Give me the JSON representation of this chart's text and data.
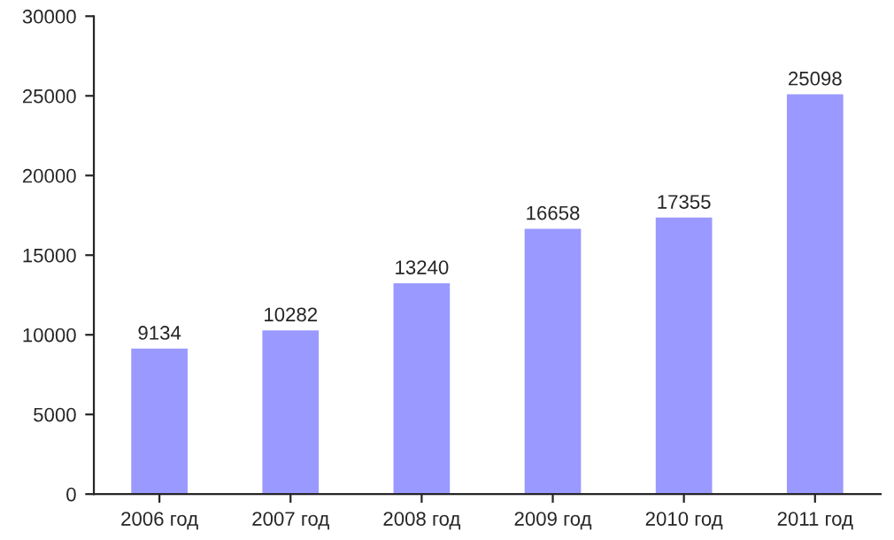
{
  "chart_data": {
    "type": "bar",
    "categories": [
      "2006 год",
      "2007 год",
      "2008 год",
      "2009 год",
      "2010 год",
      "2011 год"
    ],
    "values": [
      9134,
      10282,
      13240,
      16658,
      17355,
      25098
    ],
    "color": "#9999ff",
    "ylim": [
      0,
      30000
    ],
    "yticks": [
      0,
      5000,
      10000,
      15000,
      20000,
      25000,
      30000
    ],
    "data_labels": true,
    "grid": false,
    "legend": false
  }
}
